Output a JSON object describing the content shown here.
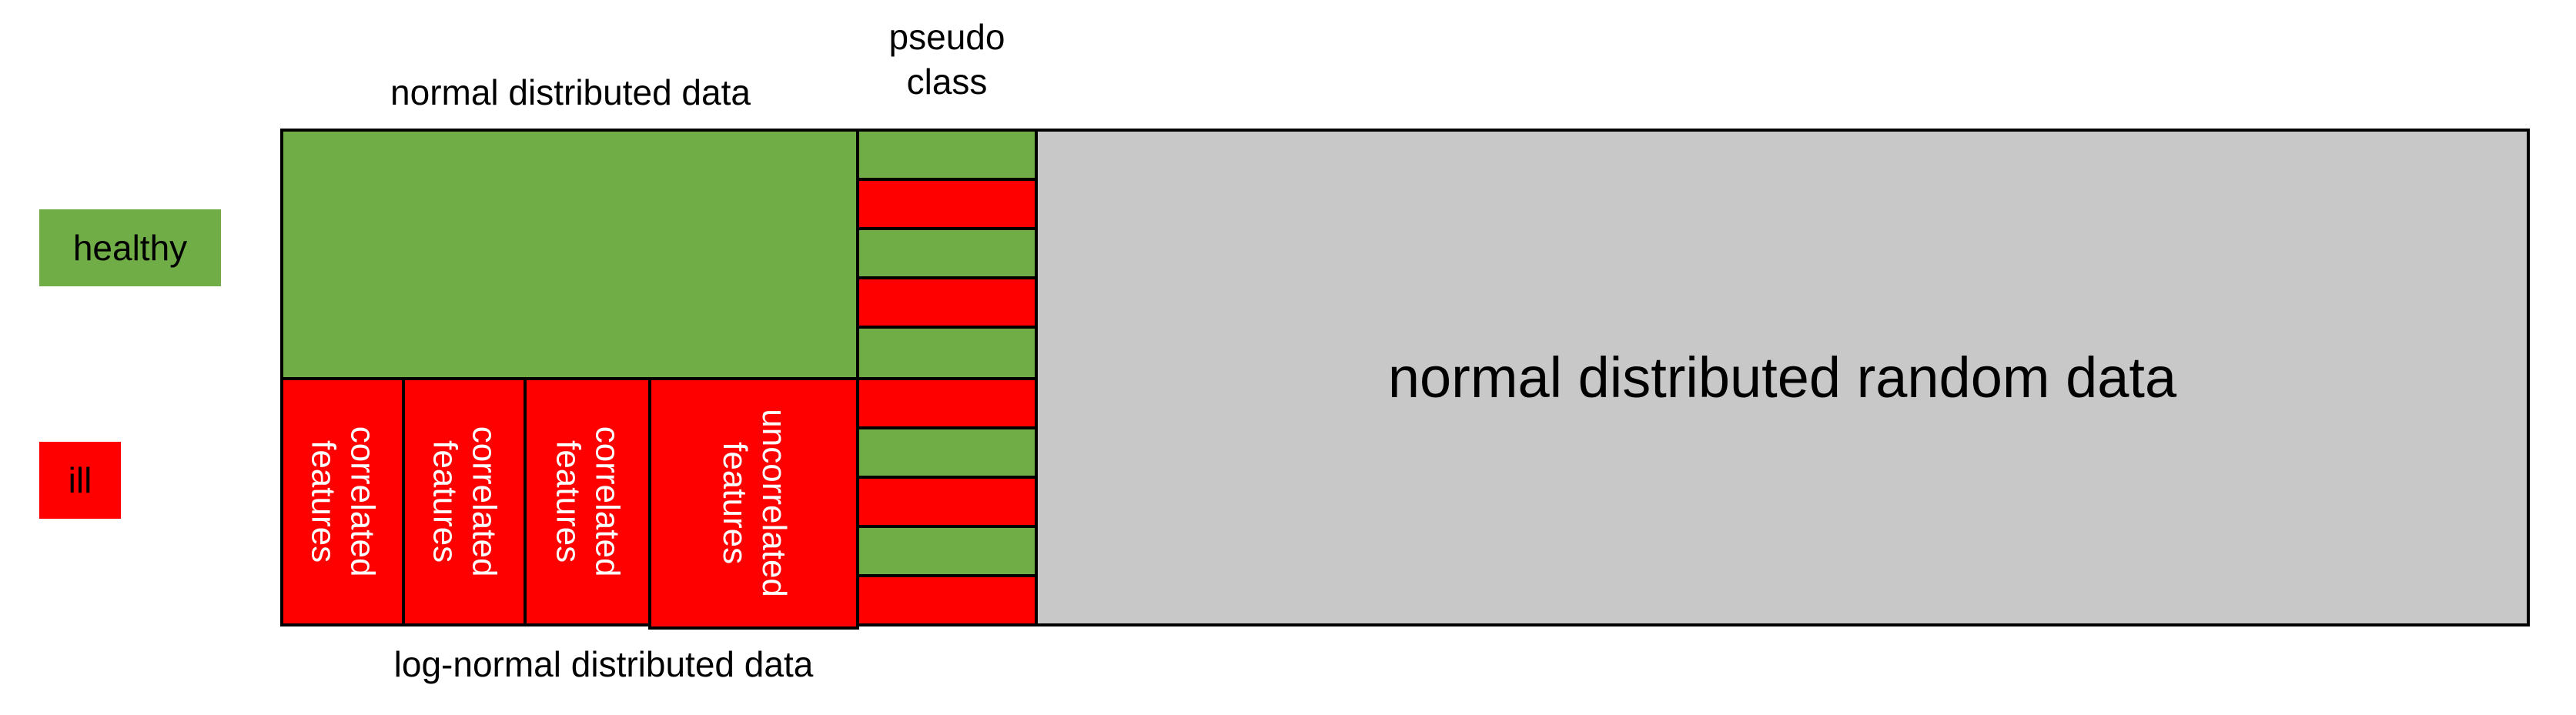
{
  "colors": {
    "healthy": "#70ad47",
    "ill": "#ff0000",
    "random": "#c8c8c8",
    "border": "#000000",
    "feature_text": "#ffffff"
  },
  "legend": {
    "healthy_label": "healthy",
    "ill_label": "ill"
  },
  "labels": {
    "normal_top": "normal distributed data",
    "pseudo_class": "pseudo\nclass",
    "log_normal_bottom": "log-normal distributed data",
    "random_block": "normal distributed random data"
  },
  "features": [
    {
      "text": "correlated\nfeatures"
    },
    {
      "text": "correlated\nfeatures"
    },
    {
      "text": "correlated\nfeatures"
    },
    {
      "text": "uncorrelated\nfeatures"
    }
  ],
  "pseudo_stripes": [
    "healthy",
    "ill",
    "healthy",
    "ill",
    "healthy",
    "ill",
    "healthy",
    "ill",
    "healthy",
    "ill"
  ]
}
